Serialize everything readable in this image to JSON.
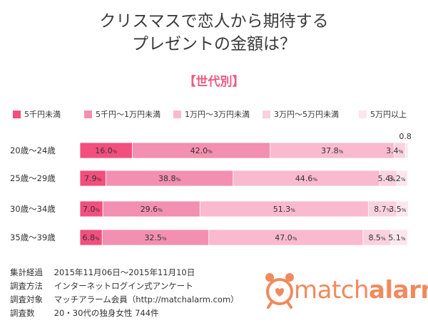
{
  "title_line1": "クリスマスで恋人から期待する",
  "title_line2": "プレゼントの金額は？",
  "subtitle": "【世代別】",
  "colors": {
    "seg1": "#f24f7e",
    "seg2": "#f38fb0",
    "seg3": "#f9b9cf",
    "seg4": "#fad1df",
    "seg5": "#fce6ee",
    "accent": "#ec5b84",
    "logo": "#f08a5d"
  },
  "chart_data": {
    "type": "bar",
    "orientation": "horizontal-stacked-100",
    "categories": [
      "20歳〜24歳",
      "25歳〜29歳",
      "30歳〜34歳",
      "35歳〜39歳"
    ],
    "series": [
      {
        "name": "5千円未満",
        "values": [
          16.0,
          7.9,
          7.0,
          6.8
        ]
      },
      {
        "name": "5千円〜1万円未満",
        "values": [
          42.0,
          38.8,
          29.6,
          32.5
        ]
      },
      {
        "name": "1万円〜3万円未満",
        "values": [
          37.8,
          44.6,
          51.3,
          47.0
        ]
      },
      {
        "name": "3万円〜5万円未満",
        "values": [
          3.4,
          5.4,
          8.7,
          8.5
        ]
      },
      {
        "name": "5万円以上",
        "values": [
          0.8,
          3.2,
          3.5,
          5.1
        ]
      }
    ],
    "unit": "%",
    "legend": "top",
    "xlim": [
      0,
      100
    ]
  },
  "notes": [
    {
      "label": "集計経過",
      "value": "2015年11月06日〜2015年11月10日"
    },
    {
      "label": "調査方法",
      "value": "インターネットログイン式アンケート"
    },
    {
      "label": "調査対象",
      "value": "マッチアラーム会員（http://matchalarm.com）"
    },
    {
      "label": "調査数",
      "value": "20・30代の独身女性 744件"
    }
  ],
  "logo": {
    "text_a": "match",
    "text_b": "alarm",
    "icon": "alarm-clock-icon"
  }
}
